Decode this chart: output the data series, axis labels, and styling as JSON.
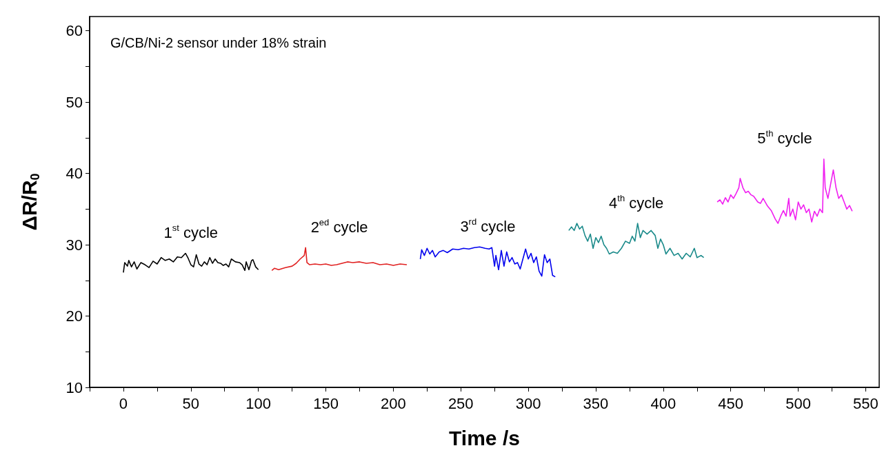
{
  "chart_data": {
    "type": "line",
    "xlabel": "Time /s",
    "ylabel": "ΔR/R$_{0}$",
    "xlim": [
      -25,
      560
    ],
    "ylim": [
      10,
      62
    ],
    "xticks": [
      {
        "value": -25,
        "label": null
      },
      0,
      {
        "value": 25,
        "label": null
      },
      50,
      {
        "value": 75,
        "label": null
      },
      100,
      {
        "value": 125,
        "label": null
      },
      150,
      {
        "value": 175,
        "label": null
      },
      200,
      {
        "value": 225,
        "label": null
      },
      250,
      {
        "value": 275,
        "label": null
      },
      300,
      {
        "value": 325,
        "label": null
      },
      350,
      {
        "value": 375,
        "label": null
      },
      400,
      {
        "value": 425,
        "label": null
      },
      450,
      {
        "value": 475,
        "label": null
      },
      500,
      {
        "value": 525,
        "label": null
      },
      550
    ],
    "yticks": [
      10,
      {
        "value": 15,
        "label": null
      },
      20,
      {
        "value": 25,
        "label": null
      },
      30,
      {
        "value": 35,
        "label": null
      },
      40,
      {
        "value": 45,
        "label": null
      },
      50,
      {
        "value": 55,
        "label": null
      },
      60
    ],
    "grid": false,
    "marker": "none",
    "line_style": "solid",
    "annotations": [
      "G/CB/Ni-2 sensor under 18% strain",
      "1$^{st}$ cycle",
      "2$^{ed}$ cycle",
      "3$^{rd}$ cycle",
      "4$^{th}$ cycle",
      "5$^{th}$ cycle"
    ],
    "series": [
      {
        "color": "#000000",
        "x": [
          0,
          1,
          3,
          4,
          6,
          8,
          10,
          13,
          16,
          19,
          22,
          25,
          28,
          31,
          34,
          37,
          40,
          43,
          46,
          48,
          50,
          52,
          54,
          56,
          58,
          60,
          62,
          64,
          66,
          68,
          70,
          72,
          74,
          76,
          78,
          80,
          83,
          86,
          88,
          90,
          91,
          93,
          95,
          96,
          98,
          100
        ],
        "values": [
          26.1,
          27.5,
          27.0,
          27.8,
          26.9,
          27.6,
          26.6,
          27.5,
          27.2,
          26.8,
          27.7,
          27.3,
          28.2,
          27.8,
          28.0,
          27.6,
          28.3,
          28.2,
          28.8,
          28.1,
          27.2,
          26.9,
          28.6,
          27.3,
          27.0,
          27.6,
          27.2,
          28.2,
          27.4,
          28.0,
          27.5,
          27.4,
          27.1,
          27.3,
          26.9,
          28.0,
          27.6,
          27.5,
          27.2,
          26.4,
          27.6,
          26.5,
          27.8,
          27.9,
          26.9,
          26.5
        ]
      },
      {
        "color": "#e02020",
        "x": [
          110,
          112,
          115,
          120,
          125,
          128,
          131,
          134,
          135,
          136,
          138,
          142,
          146,
          150,
          154,
          158,
          162,
          166,
          170,
          175,
          180,
          185,
          190,
          195,
          200,
          205,
          210
        ],
        "values": [
          26.4,
          26.7,
          26.5,
          26.8,
          27.0,
          27.4,
          28.0,
          28.5,
          29.6,
          27.5,
          27.2,
          27.3,
          27.2,
          27.3,
          27.1,
          27.2,
          27.4,
          27.6,
          27.5,
          27.6,
          27.4,
          27.5,
          27.2,
          27.3,
          27.1,
          27.3,
          27.2
        ]
      },
      {
        "color": "#0000ee",
        "x": [
          220,
          221,
          223,
          225,
          227,
          229,
          231,
          234,
          237,
          240,
          244,
          248,
          252,
          256,
          260,
          264,
          268,
          271,
          273,
          275,
          276,
          278,
          280,
          282,
          284,
          286,
          288,
          290,
          292,
          294,
          296,
          298,
          300,
          302,
          304,
          306,
          308,
          310,
          312,
          314,
          316,
          318,
          320
        ],
        "values": [
          28.0,
          29.3,
          28.5,
          29.5,
          28.7,
          29.2,
          28.3,
          29.0,
          29.2,
          28.9,
          29.4,
          29.3,
          29.5,
          29.4,
          29.6,
          29.7,
          29.5,
          29.4,
          29.6,
          27.0,
          28.5,
          26.5,
          29.2,
          27.0,
          29.0,
          27.6,
          28.2,
          27.3,
          27.5,
          26.6,
          28.0,
          29.4,
          28.0,
          28.8,
          27.5,
          28.3,
          26.3,
          25.6,
          28.6,
          27.5,
          28.0,
          25.7,
          25.5
        ]
      },
      {
        "color": "#1a8a8a",
        "x": [
          330,
          332,
          334,
          336,
          338,
          340,
          342,
          344,
          346,
          348,
          350,
          352,
          354,
          356,
          358,
          360,
          363,
          366,
          369,
          372,
          375,
          377,
          379,
          381,
          383,
          385,
          388,
          391,
          394,
          396,
          398,
          400,
          402,
          405,
          408,
          411,
          414,
          417,
          420,
          423,
          425,
          428,
          430
        ],
        "values": [
          32.0,
          32.5,
          32.0,
          33.0,
          32.2,
          32.6,
          31.3,
          30.5,
          31.5,
          29.5,
          31.0,
          30.3,
          31.2,
          30.0,
          29.5,
          28.7,
          29.0,
          28.8,
          29.5,
          30.5,
          30.2,
          31.2,
          30.5,
          33.0,
          31.0,
          32.0,
          31.5,
          32.0,
          31.3,
          29.5,
          30.8,
          30.0,
          28.7,
          29.5,
          28.5,
          28.8,
          28.0,
          28.8,
          28.3,
          29.5,
          28.2,
          28.5,
          28.2
        ]
      },
      {
        "color": "#f020f0",
        "x": [
          440,
          442,
          444,
          446,
          448,
          450,
          452,
          454,
          456,
          457,
          459,
          461,
          463,
          465,
          467,
          470,
          472,
          474,
          477,
          480,
          483,
          485,
          487,
          489,
          491,
          493,
          494,
          496,
          498,
          500,
          502,
          504,
          506,
          508,
          510,
          512,
          514,
          516,
          518,
          519,
          520,
          522,
          524,
          526,
          528,
          530,
          532,
          534,
          536,
          538,
          540
        ],
        "values": [
          36.0,
          36.3,
          35.7,
          36.6,
          36.0,
          37.0,
          36.5,
          37.2,
          38.0,
          39.3,
          38.0,
          37.3,
          37.5,
          37.0,
          36.8,
          36.0,
          35.8,
          36.5,
          35.5,
          34.8,
          33.6,
          33.0,
          34.0,
          34.8,
          34.0,
          36.5,
          34.0,
          35.0,
          33.5,
          36.0,
          35.0,
          35.6,
          34.5,
          35.0,
          33.2,
          34.7,
          34.0,
          35.0,
          34.5,
          42.0,
          38.0,
          36.5,
          38.5,
          40.5,
          38.0,
          36.5,
          37.0,
          36.0,
          35.0,
          35.5,
          34.7
        ]
      }
    ]
  }
}
